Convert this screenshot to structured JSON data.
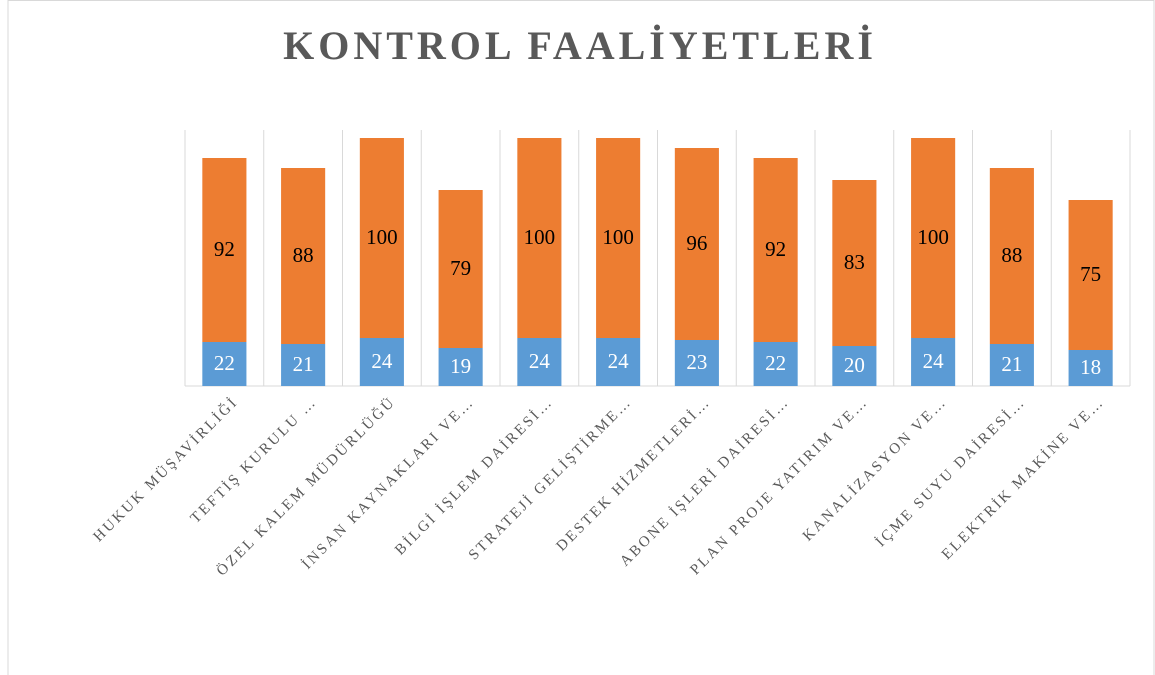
{
  "chart_data": {
    "type": "stacked-bar",
    "title": "KONTROL FAALİYETLERİ",
    "categories": [
      "HUKUK MÜŞAVİRLİĞİ",
      "TEFTİŞ KURULU …",
      "ÖZEL KALEM MÜDÜRLÜĞÜ",
      "İNSAN KAYNAKLARI VE…",
      "BİLGİ İŞLEM DAİRESİ…",
      "STRATEJİ GELİŞTİRME…",
      "DESTEK HİZMETLERİ…",
      "ABONE İŞLERİ DAİRESİ…",
      "PLAN PROJE YATIRIM VE…",
      "KANALİZASYON VE…",
      "İÇME SUYU DAİRESİ…",
      "ELEKTRİK MAKİNE VE…"
    ],
    "series": [
      {
        "color": "#5b9bd5",
        "values": [
          22,
          21,
          24,
          19,
          24,
          24,
          23,
          22,
          20,
          24,
          21,
          18
        ]
      },
      {
        "color": "#ed7d31",
        "values": [
          92,
          88,
          100,
          79,
          100,
          100,
          96,
          92,
          83,
          100,
          88,
          75
        ]
      }
    ],
    "ylim": [
      0,
      128
    ]
  }
}
